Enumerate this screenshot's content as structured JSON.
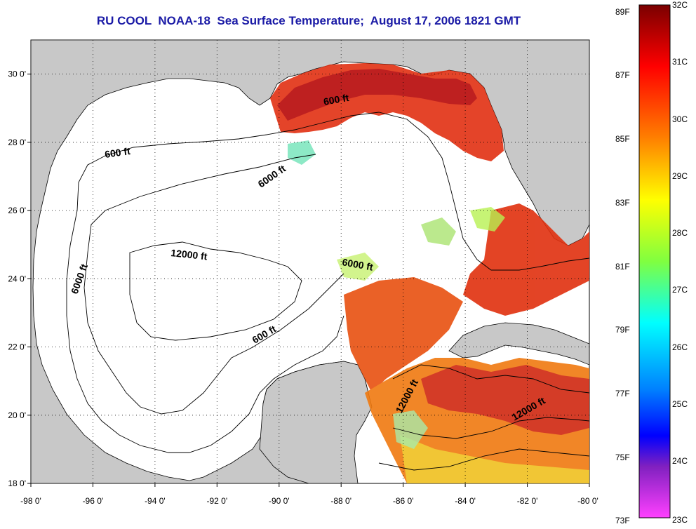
{
  "title": "RU COOL  NOAA-18  Sea Surface Temperature;  August 17, 2006 1821 GMT",
  "map": {
    "lon_range": [
      -98,
      -80
    ],
    "lat_range": [
      18,
      31
    ],
    "x_ticks": [
      "-98 0'",
      "-96 0'",
      "-94 0'",
      "-92 0'",
      "-90 0'",
      "-88 0'",
      "-86 0'",
      "-84 0'",
      "-82 0'",
      "-80 0'"
    ],
    "y_ticks": [
      "30 0'",
      "28 0'",
      "26 0'",
      "24 0'",
      "22 0'",
      "20 0'",
      "18 0'"
    ],
    "land_color": "#c8c8c8",
    "ocean_color": "#ffffff",
    "grid": "dotted"
  },
  "contours": [
    {
      "label": "600 ft"
    },
    {
      "label": "600 ft"
    },
    {
      "label": "6000 ft"
    },
    {
      "label": "12000 ft"
    },
    {
      "label": "6000 ft"
    },
    {
      "label": "6000 ft"
    },
    {
      "label": "600 ft"
    },
    {
      "label": "12000 ft"
    },
    {
      "label": "12000 ft"
    }
  ],
  "colorbar": {
    "fahrenheit": [
      "89F",
      "87F",
      "85F",
      "83F",
      "81F",
      "79F",
      "77F",
      "75F",
      "73F"
    ],
    "celsius": [
      "32C",
      "31C",
      "30C",
      "29C",
      "28C",
      "27C",
      "26C",
      "25C",
      "24C",
      "23C"
    ],
    "colors_top_to_bottom": [
      "#8b0000",
      "#ff0000",
      "#ff8000",
      "#ffff00",
      "#80ff40",
      "#00ffff",
      "#0080ff",
      "#0000ff",
      "#ff40ff"
    ]
  }
}
